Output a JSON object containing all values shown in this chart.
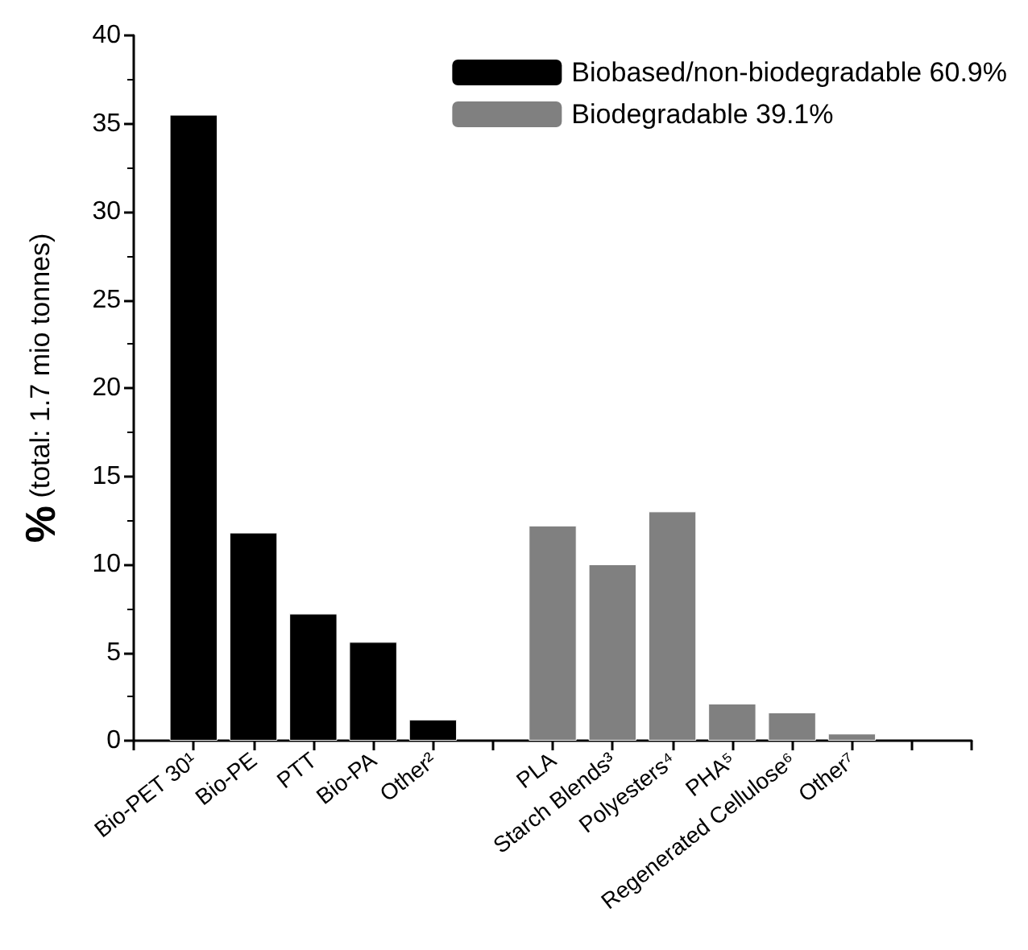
{
  "chart_data": {
    "type": "bar",
    "ylabel": "% (total: 1.7 mio tonnes)",
    "categories": [
      null,
      "Bio-PET 30¹",
      "Bio-PE",
      "PTT",
      "Bio-PA",
      "Other²",
      null,
      "PLA",
      "Starch Blends³",
      "Polyesters⁴",
      "PHA⁵",
      "Regenerated Cellulose⁶",
      "Other⁷",
      null,
      null
    ],
    "series": [
      {
        "name": "Biobased/non-biodegradable 60.9%",
        "color": "#000000",
        "values": [
          null,
          35.5,
          11.8,
          7.2,
          5.6,
          1.2,
          null,
          null,
          null,
          null,
          null,
          null,
          null,
          null,
          null
        ]
      },
      {
        "name": "Biodegradable 39.1%",
        "color": "#808080",
        "values": [
          null,
          null,
          null,
          null,
          null,
          null,
          null,
          12.2,
          10.0,
          13.0,
          2.1,
          1.6,
          0.4,
          null,
          null
        ]
      }
    ],
    "ylim": [
      0,
      40
    ],
    "yticks": [
      0,
      5,
      10,
      15,
      20,
      25,
      30,
      35,
      40
    ],
    "grid": false,
    "legend": "top right"
  }
}
